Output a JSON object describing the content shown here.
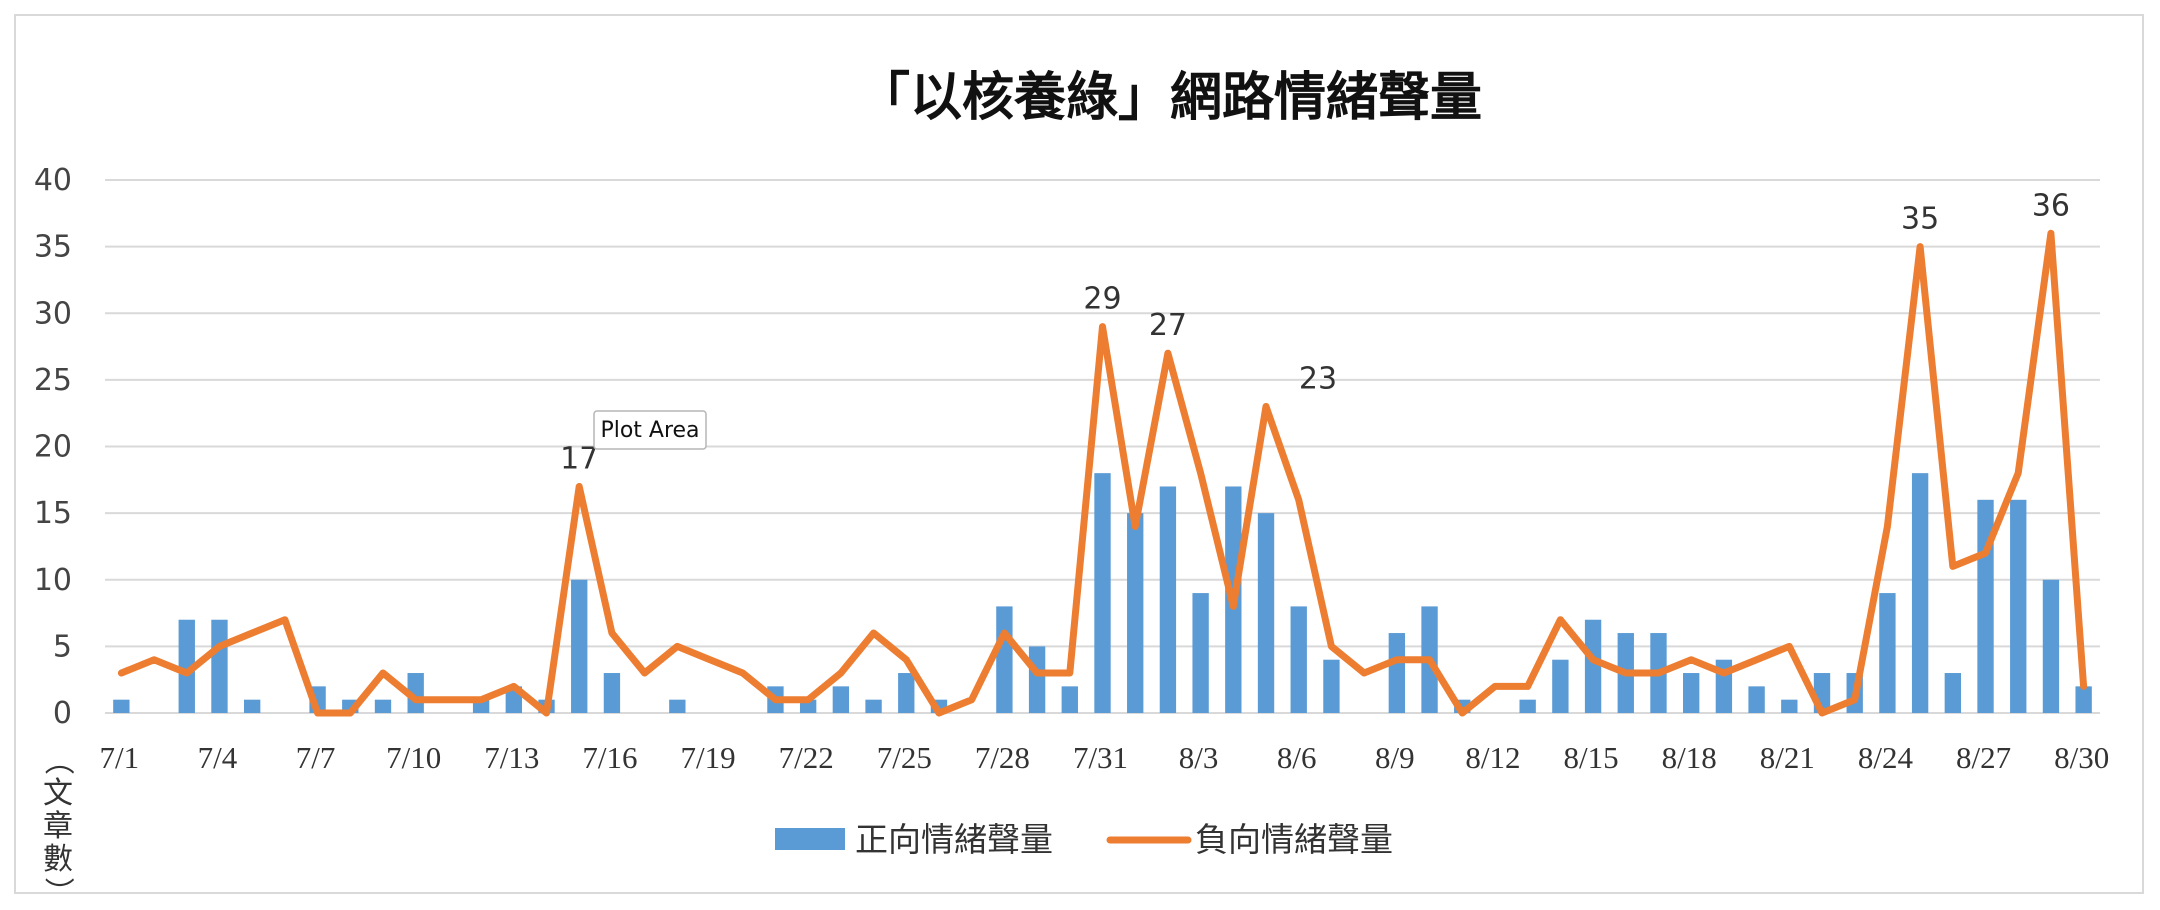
{
  "colors": {
    "bar": "#5b9bd5",
    "line": "#ed7d31",
    "grid": "#d9d9d9",
    "border": "#d9d9d9"
  },
  "tooltip": {
    "text": "Plot Area"
  },
  "chart_data": {
    "type": "bar",
    "title": "「以核養綠」網路情緒聲量",
    "ylabel": "（文章數）",
    "xlabel": "",
    "ylim": [
      0,
      40
    ],
    "yticks": [
      0,
      5,
      10,
      15,
      20,
      25,
      30,
      35,
      40
    ],
    "grid": true,
    "legend_position": "bottom",
    "x": [
      "7/1",
      "7/2",
      "7/3",
      "7/4",
      "7/5",
      "7/6",
      "7/7",
      "7/8",
      "7/9",
      "7/10",
      "7/11",
      "7/12",
      "7/13",
      "7/14",
      "7/15",
      "7/16",
      "7/17",
      "7/18",
      "7/19",
      "7/20",
      "7/21",
      "7/22",
      "7/23",
      "7/24",
      "7/25",
      "7/26",
      "7/27",
      "7/28",
      "7/29",
      "7/30",
      "7/31",
      "8/1",
      "8/2",
      "8/3",
      "8/4",
      "8/5",
      "8/6",
      "8/7",
      "8/8",
      "8/9",
      "8/10",
      "8/11",
      "8/12",
      "8/13",
      "8/14",
      "8/15",
      "8/16",
      "8/17",
      "8/18",
      "8/19",
      "8/20",
      "8/21",
      "8/22",
      "8/23",
      "8/24",
      "8/25",
      "8/26",
      "8/27",
      "8/28",
      "8/29",
      "8/30"
    ],
    "x_tick_labels": [
      "7/1",
      "7/4",
      "7/7",
      "7/10",
      "7/13",
      "7/16",
      "7/19",
      "7/22",
      "7/25",
      "7/28",
      "7/31",
      "8/3",
      "8/6",
      "8/9",
      "8/12",
      "8/15",
      "8/18",
      "8/21",
      "8/24",
      "8/27",
      "8/30"
    ],
    "series": [
      {
        "name": "正向情緒聲量",
        "kind": "bar",
        "values": [
          1,
          0,
          7,
          7,
          1,
          0,
          2,
          1,
          1,
          3,
          0,
          1,
          2,
          1,
          10,
          3,
          0,
          1,
          0,
          0,
          2,
          1,
          2,
          1,
          3,
          1,
          0,
          8,
          5,
          2,
          18,
          15,
          17,
          9,
          17,
          15,
          8,
          4,
          0,
          6,
          8,
          1,
          0,
          1,
          4,
          7,
          6,
          6,
          3,
          4,
          2,
          1,
          3,
          3,
          9,
          18,
          3,
          16,
          16,
          10,
          2
        ]
      },
      {
        "name": "負向情緒聲量",
        "kind": "line",
        "values": [
          3,
          4,
          3,
          5,
          6,
          7,
          0,
          0,
          3,
          1,
          1,
          1,
          2,
          0,
          17,
          6,
          3,
          5,
          4,
          3,
          1,
          1,
          3,
          6,
          4,
          0,
          1,
          6,
          3,
          3,
          29,
          14,
          27,
          18,
          8,
          23,
          16,
          5,
          3,
          4,
          4,
          0,
          2,
          2,
          7,
          4,
          3,
          3,
          4,
          3,
          4,
          5,
          0,
          1,
          14,
          35,
          11,
          12,
          18,
          36,
          2
        ]
      }
    ],
    "data_labels": [
      {
        "series": "負向情緒聲量",
        "x": "7/15",
        "text": "17"
      },
      {
        "series": "負向情緒聲量",
        "x": "7/31",
        "text": "29"
      },
      {
        "series": "負向情緒聲量",
        "x": "8/2",
        "text": "27"
      },
      {
        "series": "負向情緒聲量",
        "x": "8/5",
        "text": "23"
      },
      {
        "series": "負向情緒聲量",
        "x": "8/25",
        "text": "35"
      },
      {
        "series": "負向情緒聲量",
        "x": "8/29",
        "text": "36"
      }
    ]
  }
}
